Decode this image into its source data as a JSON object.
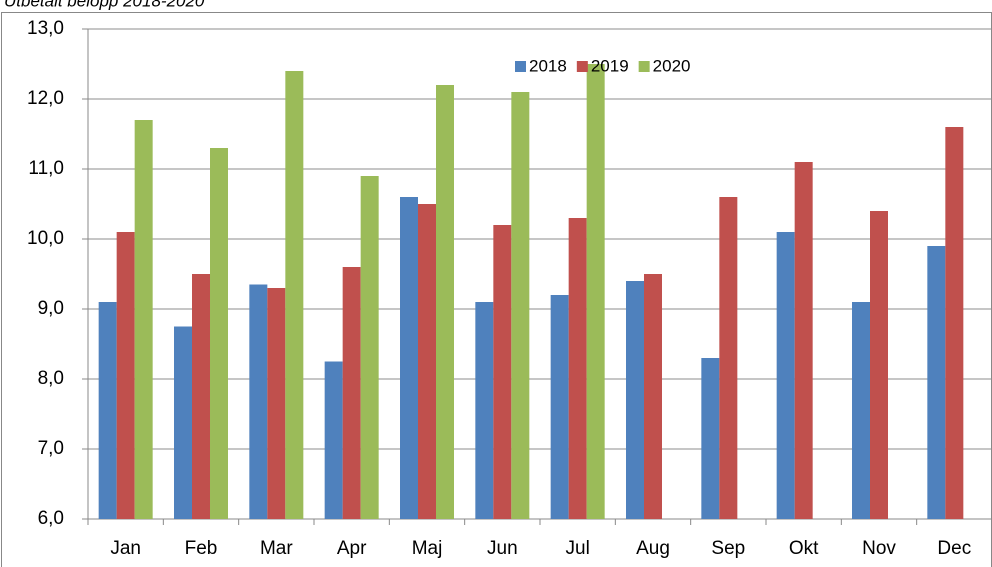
{
  "chart_data": {
    "type": "bar",
    "title": "Utbetalt belopp 2018-2020",
    "categories": [
      "Jan",
      "Feb",
      "Mar",
      "Apr",
      "Maj",
      "Jun",
      "Jul",
      "Aug",
      "Sep",
      "Okt",
      "Nov",
      "Dec"
    ],
    "series": [
      {
        "name": "2018",
        "color": "#4f81bd",
        "values": [
          9.1,
          8.75,
          9.35,
          8.25,
          10.6,
          9.1,
          9.2,
          9.4,
          8.3,
          10.1,
          9.1,
          9.9
        ]
      },
      {
        "name": "2019",
        "color": "#c0504d",
        "values": [
          10.1,
          9.5,
          9.3,
          9.6,
          10.5,
          10.2,
          10.3,
          9.5,
          10.6,
          11.1,
          10.4,
          11.6
        ]
      },
      {
        "name": "2020",
        "color": "#9bbb59",
        "values": [
          11.7,
          11.3,
          12.4,
          10.9,
          12.2,
          12.1,
          12.5,
          null,
          null,
          null,
          null,
          null
        ]
      }
    ],
    "ylim": [
      6,
      13
    ],
    "yticks": [
      {
        "value": 6,
        "label": "6,0"
      },
      {
        "value": 7,
        "label": "7,0"
      },
      {
        "value": 8,
        "label": "8,0"
      },
      {
        "value": 9,
        "label": "9,0"
      },
      {
        "value": 10,
        "label": "10,0"
      },
      {
        "value": 11,
        "label": "11,0"
      },
      {
        "value": 12,
        "label": "12,0"
      },
      {
        "value": 13,
        "label": "13,0"
      }
    ],
    "grid": true,
    "legend": "top"
  }
}
